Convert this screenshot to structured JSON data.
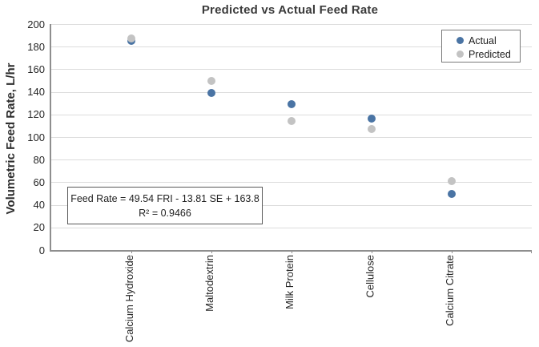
{
  "chart_data": {
    "type": "scatter",
    "title": "Predicted vs Actual Feed Rate",
    "ylabel": "Volumetric Feed Rate, L/hr",
    "xlabel": "",
    "categories": [
      "Calcium Hydroxide",
      "Maltodextrin",
      "Milk Protein",
      "Cellulose",
      "Calcium Citrate"
    ],
    "series": [
      {
        "name": "Actual",
        "color": "#4a74a4",
        "values": [
          185,
          139,
          129,
          116,
          50
        ]
      },
      {
        "name": "Predicted",
        "color": "#c3c3c3",
        "values": [
          187,
          150,
          114,
          107,
          61
        ]
      }
    ],
    "ylim": [
      0,
      200
    ],
    "ytick_step": 20,
    "grid": "horizontal",
    "legend_position": "top-right",
    "annotation": {
      "line1": "Feed Rate = 49.54 FRI - 13.81 SE + 163.8",
      "line2": "R² = 0.9466"
    }
  }
}
